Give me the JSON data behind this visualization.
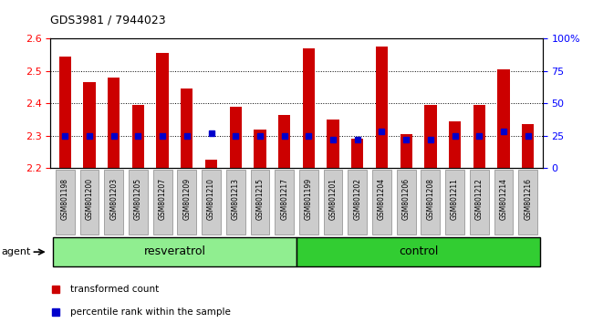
{
  "title": "GDS3981 / 7944023",
  "samples": [
    "GSM801198",
    "GSM801200",
    "GSM801203",
    "GSM801205",
    "GSM801207",
    "GSM801209",
    "GSM801210",
    "GSM801213",
    "GSM801215",
    "GSM801217",
    "GSM801199",
    "GSM801201",
    "GSM801202",
    "GSM801204",
    "GSM801206",
    "GSM801208",
    "GSM801211",
    "GSM801212",
    "GSM801214",
    "GSM801216"
  ],
  "transformed_count": [
    2.545,
    2.465,
    2.48,
    2.395,
    2.555,
    2.445,
    2.225,
    2.39,
    2.32,
    2.365,
    2.57,
    2.35,
    2.29,
    2.575,
    2.305,
    2.395,
    2.345,
    2.395,
    2.505,
    2.335
  ],
  "percentile_rank": [
    25,
    25,
    25,
    25,
    25,
    25,
    27,
    25,
    25,
    25,
    25,
    22,
    22,
    28,
    22,
    22,
    25,
    25,
    28,
    25
  ],
  "ylim_left": [
    2.2,
    2.6
  ],
  "ylim_right": [
    0,
    100
  ],
  "yticks_left": [
    2.2,
    2.3,
    2.4,
    2.5,
    2.6
  ],
  "yticks_right": [
    0,
    25,
    50,
    75,
    100
  ],
  "ytick_labels_right": [
    "0",
    "25",
    "50",
    "75",
    "100%"
  ],
  "bar_color": "#cc0000",
  "percentile_color": "#0000cc",
  "resveratrol_color": "#90ee90",
  "control_color": "#32cd32",
  "group_label_resveratrol": "resveratrol",
  "group_label_control": "control",
  "agent_label": "agent",
  "legend_bar_label": "transformed count",
  "legend_pct_label": "percentile rank within the sample",
  "bar_width": 0.5,
  "base_value": 2.2,
  "tick_bg_color": "#cccccc",
  "n_resveratrol": 10,
  "n_control": 10
}
